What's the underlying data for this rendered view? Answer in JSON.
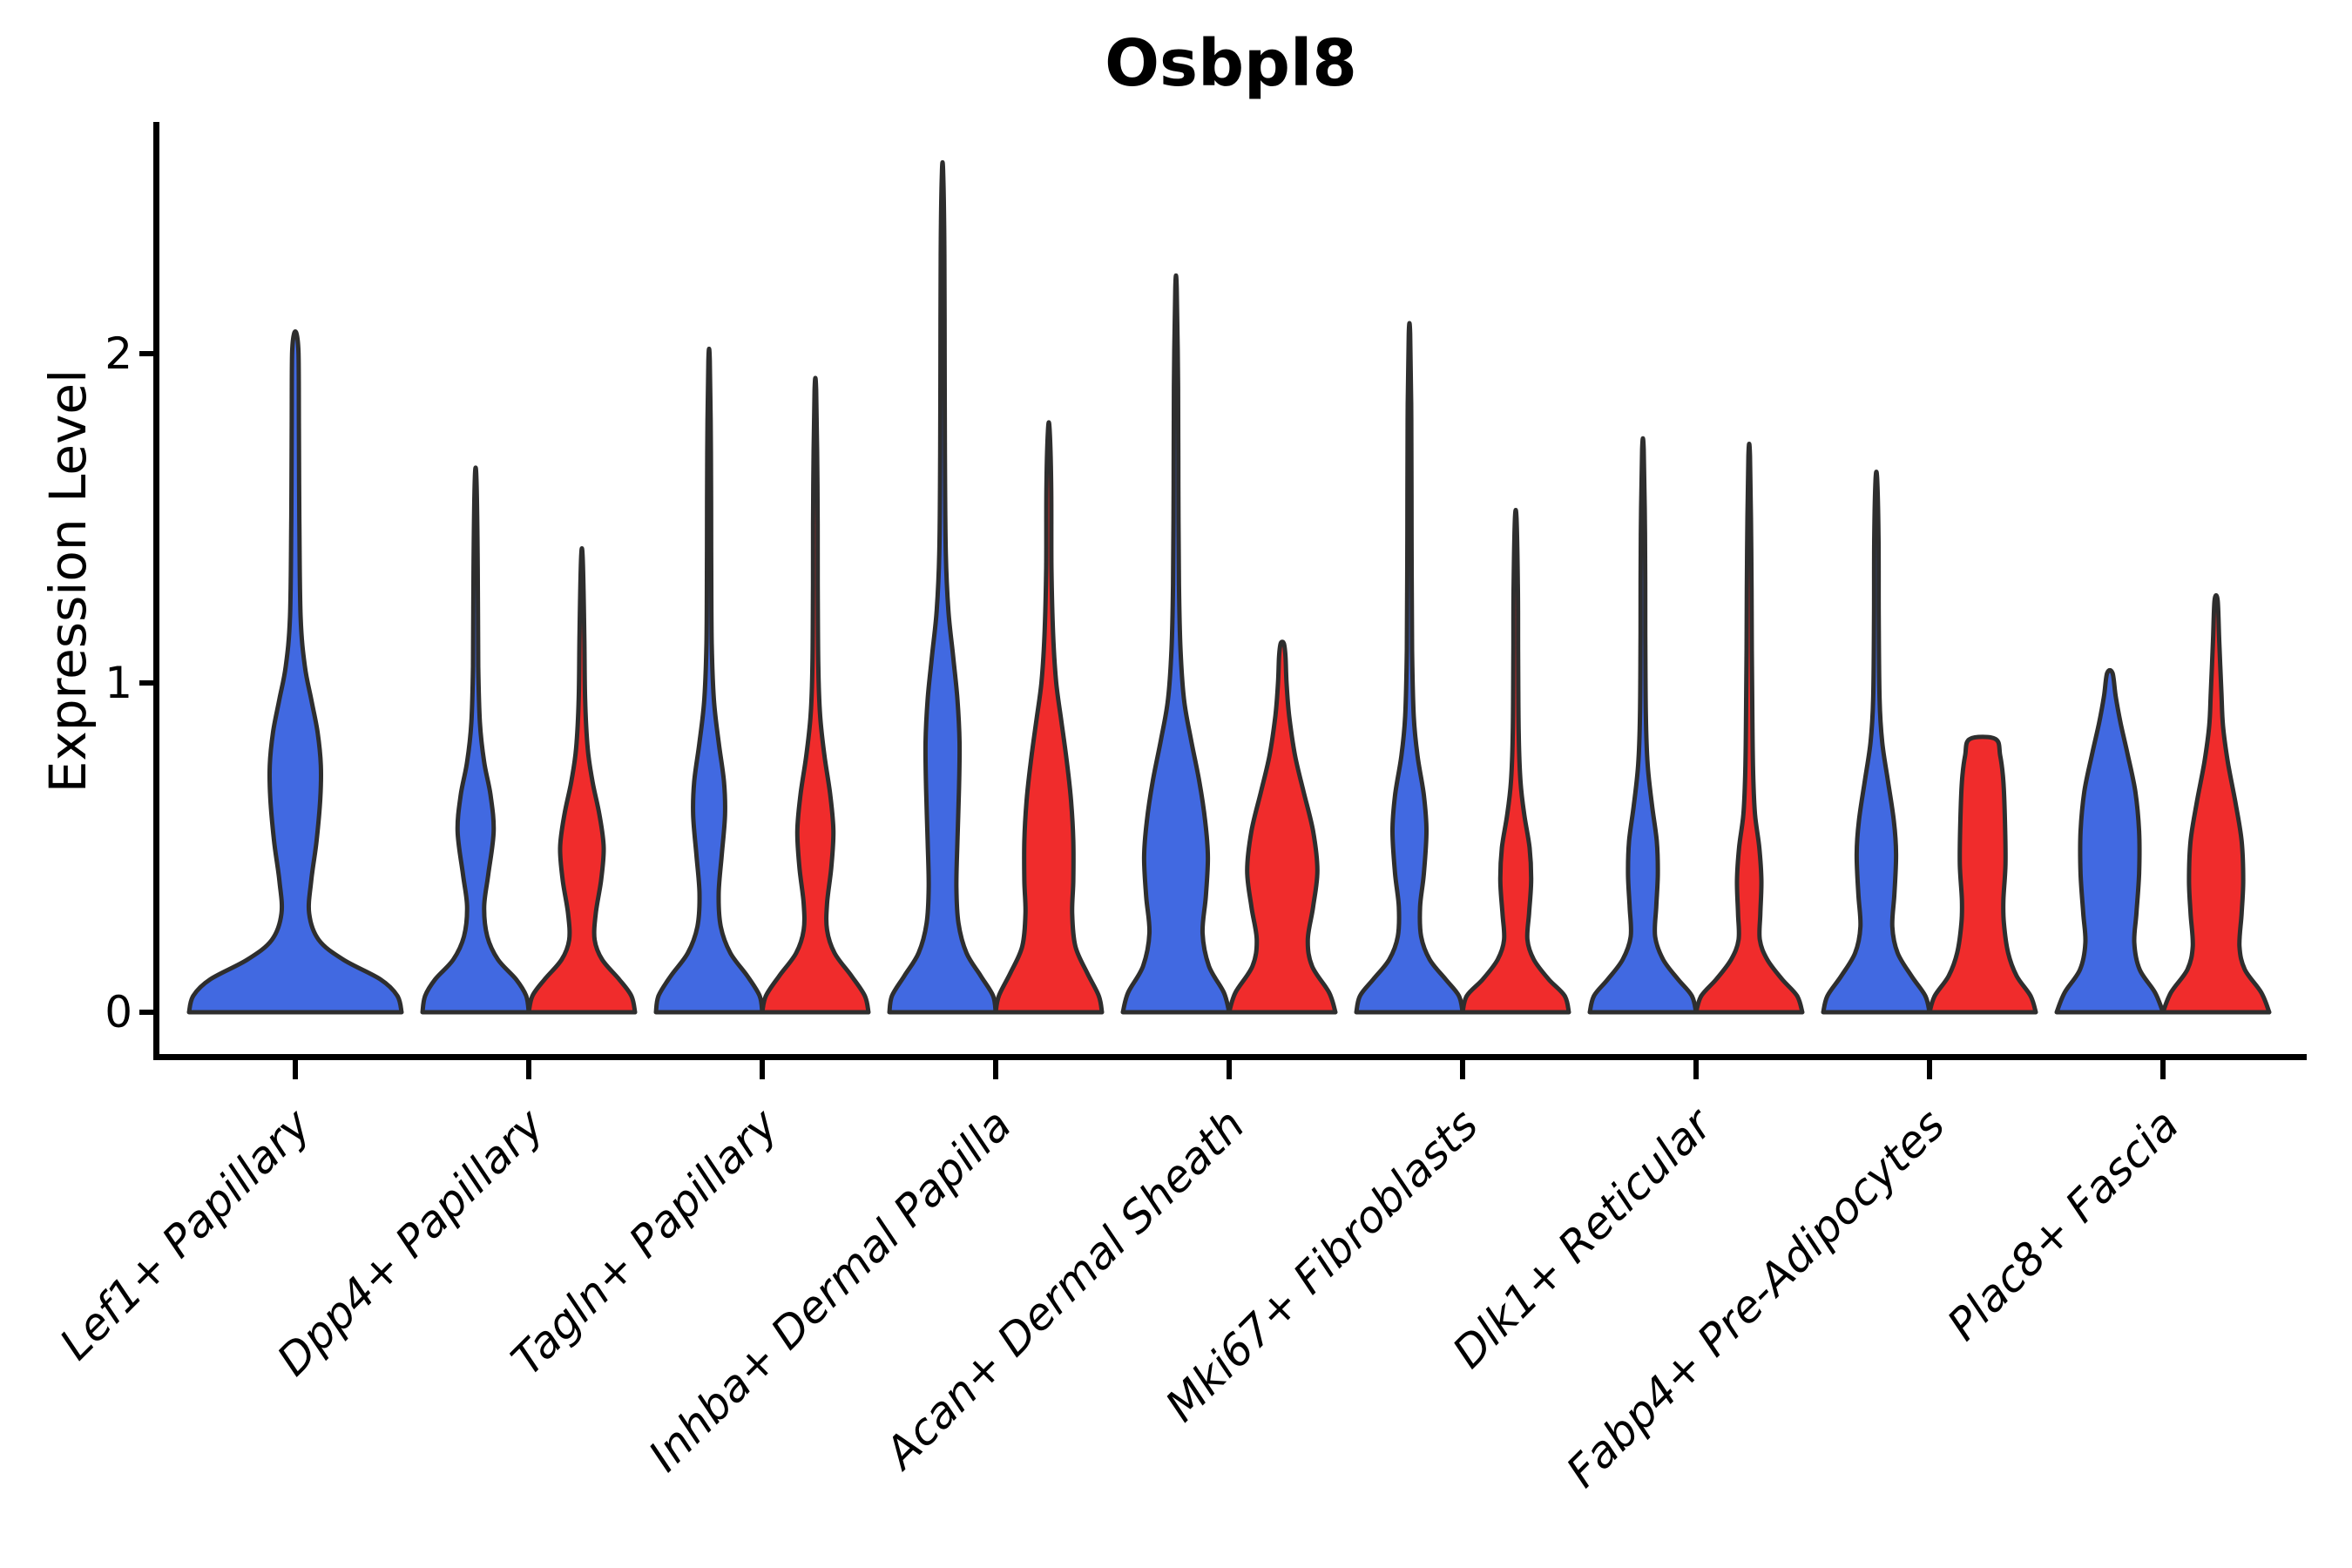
{
  "title": "Osbpl8",
  "axes": {
    "ylabel": "Expression Level",
    "ytick_labels": [
      "0",
      "1",
      "2"
    ]
  },
  "chart_data": {
    "type": "violin",
    "title": "Osbpl8",
    "xlabel": "",
    "ylabel": "Expression Level",
    "yticks": [
      0,
      1,
      2
    ],
    "ylim": [
      -0.14,
      2.7
    ],
    "grid": false,
    "legend": "none",
    "colors": {
      "blue": "#4169E1",
      "red": "#F02C2C",
      "outline": "#2E2E2E",
      "axis": "#000000",
      "text": "#000000"
    },
    "categories": [
      "Lef1+ Papillary",
      "Dpp4+ Papillary",
      "Tagln+ Papillary",
      "Inhba+ Dermal Papilla",
      "Acan+ Dermal Sheath",
      "Mki67+ Fibroblasts",
      "Dlk1+ Reticular",
      "Fabp4+ Pre-Adipocytes",
      "Plac8+ Fascia"
    ],
    "series": [
      {
        "id": "blue",
        "color": "#4169E1"
      },
      {
        "id": "red",
        "color": "#F02C2C"
      }
    ],
    "violins": [
      {
        "category": 0,
        "series": "blue",
        "span": "full",
        "max": 2.06,
        "profile": [
          [
            0,
            1
          ],
          [
            0.05,
            0.96
          ],
          [
            0.1,
            0.8
          ],
          [
            0.16,
            0.45
          ],
          [
            0.22,
            0.22
          ],
          [
            0.3,
            0.13
          ],
          [
            0.4,
            0.15
          ],
          [
            0.52,
            0.2
          ],
          [
            0.65,
            0.235
          ],
          [
            0.75,
            0.24
          ],
          [
            0.85,
            0.21
          ],
          [
            0.95,
            0.15
          ],
          [
            1.05,
            0.09
          ],
          [
            1.2,
            0.05
          ],
          [
            1.5,
            0.038
          ],
          [
            1.8,
            0.034
          ],
          [
            2.0,
            0.03
          ],
          [
            2.06,
            0.012
          ]
        ]
      },
      {
        "category": 1,
        "series": "blue",
        "span": "half",
        "max": 1.62,
        "profile": [
          [
            0,
            1
          ],
          [
            0.05,
            0.95
          ],
          [
            0.1,
            0.76
          ],
          [
            0.16,
            0.42
          ],
          [
            0.23,
            0.22
          ],
          [
            0.32,
            0.16
          ],
          [
            0.42,
            0.24
          ],
          [
            0.55,
            0.34
          ],
          [
            0.66,
            0.28
          ],
          [
            0.76,
            0.16
          ],
          [
            0.88,
            0.08
          ],
          [
            1.05,
            0.05
          ],
          [
            1.35,
            0.04
          ],
          [
            1.62,
            0.015
          ]
        ]
      },
      {
        "category": 1,
        "series": "red",
        "span": "half",
        "max": 1.38,
        "profile": [
          [
            0,
            1
          ],
          [
            0.05,
            0.93
          ],
          [
            0.1,
            0.7
          ],
          [
            0.16,
            0.38
          ],
          [
            0.22,
            0.24
          ],
          [
            0.3,
            0.26
          ],
          [
            0.4,
            0.36
          ],
          [
            0.5,
            0.41
          ],
          [
            0.6,
            0.33
          ],
          [
            0.7,
            0.2
          ],
          [
            0.8,
            0.11
          ],
          [
            0.95,
            0.06
          ],
          [
            1.15,
            0.045
          ],
          [
            1.38,
            0.015
          ]
        ]
      },
      {
        "category": 2,
        "series": "blue",
        "span": "half",
        "max": 1.98,
        "profile": [
          [
            0,
            1
          ],
          [
            0.05,
            0.95
          ],
          [
            0.11,
            0.72
          ],
          [
            0.18,
            0.4
          ],
          [
            0.26,
            0.22
          ],
          [
            0.36,
            0.18
          ],
          [
            0.48,
            0.24
          ],
          [
            0.6,
            0.3
          ],
          [
            0.7,
            0.28
          ],
          [
            0.82,
            0.18
          ],
          [
            0.95,
            0.09
          ],
          [
            1.12,
            0.05
          ],
          [
            1.4,
            0.04
          ],
          [
            1.7,
            0.035
          ],
          [
            1.98,
            0.013
          ]
        ]
      },
      {
        "category": 2,
        "series": "red",
        "span": "half",
        "max": 1.89,
        "profile": [
          [
            0,
            1
          ],
          [
            0.05,
            0.93
          ],
          [
            0.11,
            0.68
          ],
          [
            0.18,
            0.36
          ],
          [
            0.25,
            0.22
          ],
          [
            0.33,
            0.22
          ],
          [
            0.44,
            0.3
          ],
          [
            0.55,
            0.34
          ],
          [
            0.66,
            0.28
          ],
          [
            0.78,
            0.17
          ],
          [
            0.9,
            0.09
          ],
          [
            1.05,
            0.055
          ],
          [
            1.3,
            0.045
          ],
          [
            1.6,
            0.04
          ],
          [
            1.89,
            0.014
          ]
        ]
      },
      {
        "category": 3,
        "series": "blue",
        "span": "half",
        "max": 2.55,
        "profile": [
          [
            0,
            1
          ],
          [
            0.05,
            0.95
          ],
          [
            0.11,
            0.72
          ],
          [
            0.18,
            0.45
          ],
          [
            0.27,
            0.3
          ],
          [
            0.38,
            0.26
          ],
          [
            0.52,
            0.28
          ],
          [
            0.68,
            0.31
          ],
          [
            0.82,
            0.32
          ],
          [
            0.95,
            0.28
          ],
          [
            1.08,
            0.2
          ],
          [
            1.22,
            0.11
          ],
          [
            1.4,
            0.06
          ],
          [
            1.7,
            0.045
          ],
          [
            2.0,
            0.04
          ],
          [
            2.3,
            0.035
          ],
          [
            2.55,
            0.012
          ]
        ]
      },
      {
        "category": 3,
        "series": "red",
        "span": "half",
        "max": 1.77,
        "profile": [
          [
            0,
            1
          ],
          [
            0.05,
            0.94
          ],
          [
            0.12,
            0.72
          ],
          [
            0.2,
            0.5
          ],
          [
            0.3,
            0.44
          ],
          [
            0.4,
            0.46
          ],
          [
            0.52,
            0.46
          ],
          [
            0.64,
            0.42
          ],
          [
            0.76,
            0.34
          ],
          [
            0.88,
            0.24
          ],
          [
            1.0,
            0.14
          ],
          [
            1.15,
            0.08
          ],
          [
            1.35,
            0.05
          ],
          [
            1.6,
            0.045
          ],
          [
            1.77,
            0.015
          ]
        ]
      },
      {
        "category": 4,
        "series": "blue",
        "span": "half",
        "max": 2.2,
        "profile": [
          [
            0,
            1
          ],
          [
            0.06,
            0.9
          ],
          [
            0.14,
            0.62
          ],
          [
            0.24,
            0.5
          ],
          [
            0.35,
            0.56
          ],
          [
            0.47,
            0.6
          ],
          [
            0.58,
            0.55
          ],
          [
            0.7,
            0.44
          ],
          [
            0.83,
            0.28
          ],
          [
            0.95,
            0.15
          ],
          [
            1.1,
            0.085
          ],
          [
            1.3,
            0.055
          ],
          [
            1.6,
            0.045
          ],
          [
            1.9,
            0.04
          ],
          [
            2.2,
            0.013
          ]
        ]
      },
      {
        "category": 4,
        "series": "red",
        "span": "half",
        "max": 1.12,
        "profile": [
          [
            0,
            1
          ],
          [
            0.06,
            0.88
          ],
          [
            0.14,
            0.56
          ],
          [
            0.22,
            0.48
          ],
          [
            0.32,
            0.58
          ],
          [
            0.43,
            0.66
          ],
          [
            0.55,
            0.58
          ],
          [
            0.67,
            0.4
          ],
          [
            0.78,
            0.24
          ],
          [
            0.9,
            0.13
          ],
          [
            1.0,
            0.08
          ],
          [
            1.08,
            0.06
          ],
          [
            1.12,
            0.03
          ]
        ]
      },
      {
        "category": 5,
        "series": "blue",
        "span": "half",
        "max": 2.06,
        "profile": [
          [
            0,
            1
          ],
          [
            0.05,
            0.93
          ],
          [
            0.1,
            0.68
          ],
          [
            0.16,
            0.38
          ],
          [
            0.23,
            0.22
          ],
          [
            0.32,
            0.2
          ],
          [
            0.42,
            0.27
          ],
          [
            0.55,
            0.32
          ],
          [
            0.66,
            0.27
          ],
          [
            0.78,
            0.15
          ],
          [
            0.9,
            0.08
          ],
          [
            1.1,
            0.05
          ],
          [
            1.45,
            0.04
          ],
          [
            1.8,
            0.035
          ],
          [
            2.06,
            0.013
          ]
        ]
      },
      {
        "category": 5,
        "series": "red",
        "span": "half",
        "max": 1.5,
        "profile": [
          [
            0,
            1
          ],
          [
            0.05,
            0.92
          ],
          [
            0.1,
            0.62
          ],
          [
            0.16,
            0.34
          ],
          [
            0.22,
            0.22
          ],
          [
            0.3,
            0.25
          ],
          [
            0.4,
            0.29
          ],
          [
            0.5,
            0.26
          ],
          [
            0.6,
            0.16
          ],
          [
            0.7,
            0.09
          ],
          [
            0.85,
            0.055
          ],
          [
            1.1,
            0.045
          ],
          [
            1.3,
            0.04
          ],
          [
            1.5,
            0.014
          ]
        ]
      },
      {
        "category": 6,
        "series": "blue",
        "span": "half",
        "max": 1.71,
        "profile": [
          [
            0,
            1
          ],
          [
            0.05,
            0.92
          ],
          [
            0.1,
            0.66
          ],
          [
            0.16,
            0.38
          ],
          [
            0.23,
            0.23
          ],
          [
            0.32,
            0.25
          ],
          [
            0.42,
            0.28
          ],
          [
            0.52,
            0.26
          ],
          [
            0.63,
            0.17
          ],
          [
            0.75,
            0.09
          ],
          [
            0.9,
            0.055
          ],
          [
            1.15,
            0.045
          ],
          [
            1.45,
            0.04
          ],
          [
            1.71,
            0.014
          ]
        ]
      },
      {
        "category": 6,
        "series": "red",
        "span": "half",
        "max": 1.69,
        "profile": [
          [
            0,
            1
          ],
          [
            0.05,
            0.9
          ],
          [
            0.1,
            0.62
          ],
          [
            0.16,
            0.34
          ],
          [
            0.22,
            0.2
          ],
          [
            0.3,
            0.21
          ],
          [
            0.4,
            0.23
          ],
          [
            0.5,
            0.19
          ],
          [
            0.6,
            0.11
          ],
          [
            0.72,
            0.075
          ],
          [
            0.88,
            0.06
          ],
          [
            1.1,
            0.05
          ],
          [
            1.4,
            0.04
          ],
          [
            1.69,
            0.014
          ]
        ]
      },
      {
        "category": 7,
        "series": "blue",
        "span": "half",
        "max": 1.62,
        "profile": [
          [
            0,
            1
          ],
          [
            0.05,
            0.92
          ],
          [
            0.11,
            0.66
          ],
          [
            0.18,
            0.4
          ],
          [
            0.26,
            0.3
          ],
          [
            0.36,
            0.34
          ],
          [
            0.48,
            0.37
          ],
          [
            0.58,
            0.33
          ],
          [
            0.7,
            0.22
          ],
          [
            0.82,
            0.11
          ],
          [
            0.95,
            0.06
          ],
          [
            1.2,
            0.045
          ],
          [
            1.45,
            0.04
          ],
          [
            1.62,
            0.014
          ]
        ]
      },
      {
        "category": 7,
        "series": "red",
        "span": "half",
        "max": 0.83,
        "flat_top": true,
        "profile": [
          [
            0,
            1
          ],
          [
            0.05,
            0.9
          ],
          [
            0.11,
            0.64
          ],
          [
            0.18,
            0.48
          ],
          [
            0.27,
            0.4
          ],
          [
            0.34,
            0.39
          ],
          [
            0.45,
            0.43
          ],
          [
            0.58,
            0.42
          ],
          [
            0.7,
            0.39
          ],
          [
            0.78,
            0.33
          ],
          [
            0.83,
            0.24
          ]
        ]
      },
      {
        "category": 8,
        "series": "blue",
        "span": "half",
        "max": 1.03,
        "profile": [
          [
            0,
            1
          ],
          [
            0.06,
            0.85
          ],
          [
            0.13,
            0.56
          ],
          [
            0.21,
            0.46
          ],
          [
            0.3,
            0.5
          ],
          [
            0.42,
            0.55
          ],
          [
            0.55,
            0.55
          ],
          [
            0.67,
            0.48
          ],
          [
            0.78,
            0.34
          ],
          [
            0.88,
            0.2
          ],
          [
            0.96,
            0.11
          ],
          [
            1.03,
            0.05
          ]
        ]
      },
      {
        "category": 8,
        "series": "red",
        "span": "half",
        "max": 1.25,
        "profile": [
          [
            0,
            1
          ],
          [
            0.06,
            0.85
          ],
          [
            0.13,
            0.54
          ],
          [
            0.2,
            0.44
          ],
          [
            0.3,
            0.48
          ],
          [
            0.4,
            0.51
          ],
          [
            0.52,
            0.48
          ],
          [
            0.64,
            0.36
          ],
          [
            0.76,
            0.22
          ],
          [
            0.87,
            0.13
          ],
          [
            0.97,
            0.1
          ],
          [
            1.12,
            0.06
          ],
          [
            1.25,
            0.03
          ]
        ]
      }
    ]
  }
}
